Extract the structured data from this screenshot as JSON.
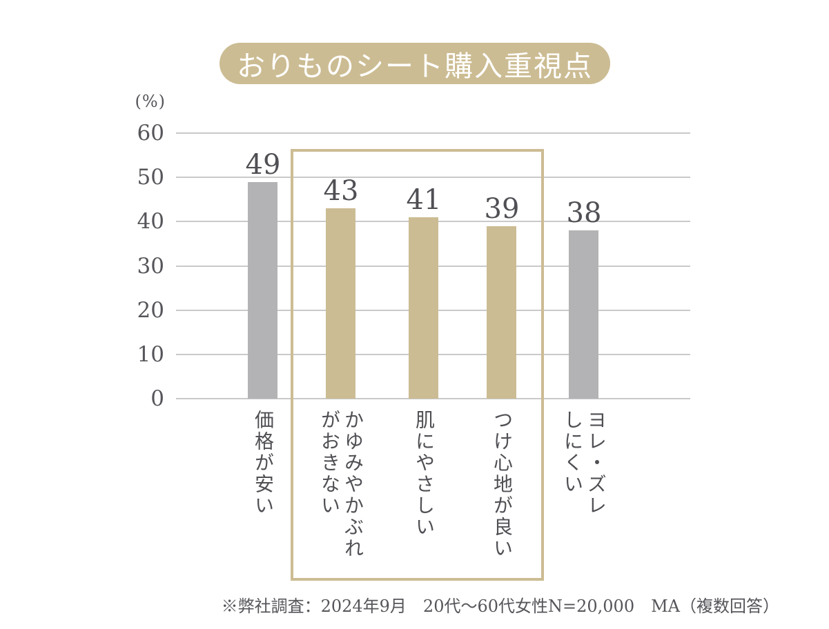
{
  "title": {
    "text": "おりものシート購入重視点"
  },
  "chart_data": {
    "type": "bar",
    "title": "おりものシート購入重視点",
    "unit_label": "(%)",
    "categories": [
      "価格が安い",
      "かゆみやかぶれ\nがおきない",
      "肌にやさしい",
      "つけ心地が良い",
      "ヨレ・ズレ\nしにくい"
    ],
    "values": [
      49,
      43,
      41,
      39,
      38
    ],
    "yticks": [
      0,
      10,
      20,
      30,
      40,
      50,
      60
    ],
    "ylim": [
      0,
      60
    ],
    "grid": true,
    "legend": "none",
    "bar_colors": [
      "#b3b3b5",
      "#ccbc93",
      "#ccbc93",
      "#ccbc93",
      "#b3b3b5"
    ],
    "highlight_box": {
      "from_index": 1,
      "to_index": 3,
      "border_color": "#ccbc93"
    }
  },
  "footnote": {
    "text": "※弊社調査：2024年9月　20代～60代女性N=20,000　MA（複数回答）"
  },
  "colors": {
    "accent_tan": "#ccbc93",
    "bar_gray": "#b3b3b5",
    "gridline": "#c9c9c9",
    "text_gray": "#55555a",
    "text_dark": "#4f4f54",
    "title_text": "#ffffff",
    "background": "#ffffff"
  }
}
